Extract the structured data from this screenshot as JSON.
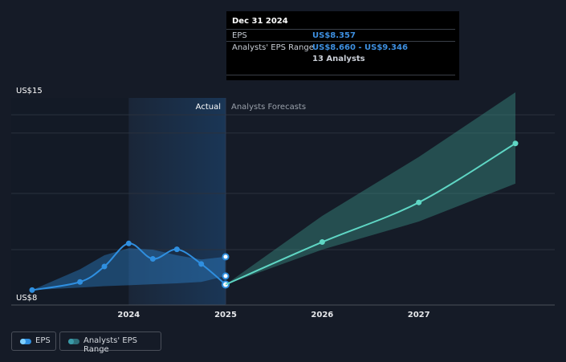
{
  "chart_data": {
    "type": "line",
    "y_axis": {
      "top_label": "US$15",
      "bottom_label": "US$8",
      "ylim": [
        8,
        15
      ]
    },
    "x_axis": {
      "ticks": [
        "2024",
        "2025",
        "2026",
        "2027"
      ]
    },
    "regions": {
      "actual_label": "Actual",
      "forecast_label": "Analysts Forecasts"
    },
    "series": [
      {
        "name": "EPS",
        "color": "#2f8fe0",
        "points": [
          {
            "x": "2022-12-31",
            "y": 8.16
          },
          {
            "x": "2023-06-30",
            "y": 8.45
          },
          {
            "x": "2023-09-30",
            "y": 9.0
          },
          {
            "x": "2023-12-31",
            "y": 9.82
          },
          {
            "x": "2024-03-31",
            "y": 9.27
          },
          {
            "x": "2024-06-30",
            "y": 9.61
          },
          {
            "x": "2024-09-30",
            "y": 9.09
          },
          {
            "x": "2024-12-31",
            "y": 8.357
          }
        ]
      },
      {
        "name": "EPS forecast",
        "color": "#5fd6c4",
        "points": [
          {
            "x": "2024-12-31",
            "y": 8.357
          },
          {
            "x": "2025-12-31",
            "y": 9.87
          },
          {
            "x": "2026-12-31",
            "y": 11.28
          },
          {
            "x": "2027-12-31",
            "y": 13.38
          }
        ]
      }
    ],
    "ranges": [
      {
        "name": "Analysts' EPS Range",
        "color": "#2f8fe0",
        "points": [
          {
            "x": "2022-12-31",
            "low": 8.16,
            "high": 8.16
          },
          {
            "x": "2023-06-30",
            "low": 8.25,
            "high": 8.9
          },
          {
            "x": "2023-09-30",
            "low": 8.3,
            "high": 9.4
          },
          {
            "x": "2023-12-31",
            "low": 8.33,
            "high": 9.65
          },
          {
            "x": "2024-03-31",
            "low": 8.37,
            "high": 9.6
          },
          {
            "x": "2024-06-30",
            "low": 8.4,
            "high": 9.4
          },
          {
            "x": "2024-09-30",
            "low": 8.45,
            "high": 9.25
          },
          {
            "x": "2024-12-31",
            "low": 8.66,
            "high": 9.346
          }
        ]
      },
      {
        "name": "Analysts' EPS Range forecast",
        "color": "#3a8f82",
        "points": [
          {
            "x": "2024-12-31",
            "low": 8.357,
            "high": 8.357
          },
          {
            "x": "2025-12-31",
            "low": 9.6,
            "high": 10.8
          },
          {
            "x": "2026-12-31",
            "low": 10.6,
            "high": 12.9
          },
          {
            "x": "2027-12-31",
            "low": 11.95,
            "high": 15.2
          }
        ]
      }
    ],
    "grid": true,
    "legend_position": "bottom-left"
  },
  "tooltip": {
    "date": "Dec 31 2024",
    "eps_label": "EPS",
    "eps_value": "US$8.357",
    "range_label": "Analysts' EPS Range",
    "range_value": "US$8.660 - US$9.346",
    "analysts": "13 Analysts"
  },
  "legend": {
    "eps_label": "EPS",
    "range_label": "Analysts' EPS Range",
    "eps_color": "#2f8fe0",
    "range_color": "#2e8a9a"
  }
}
